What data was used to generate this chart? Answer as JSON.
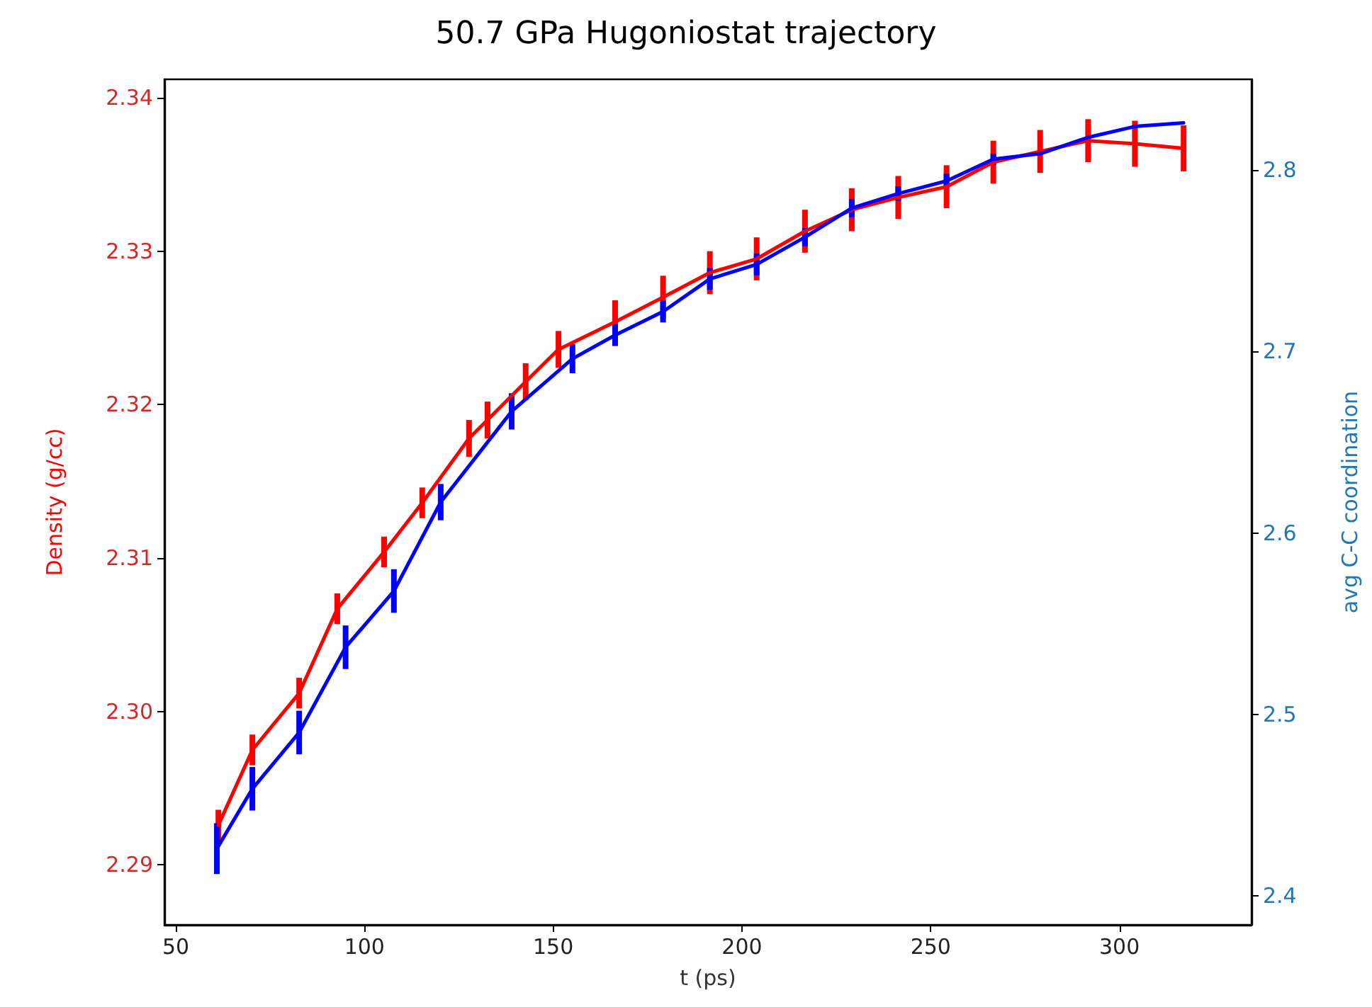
{
  "chart_data": {
    "type": "line",
    "title": "50.7 GPa Hugoniostat trajectory",
    "xlabel": "t (ps)",
    "ylabel": "Density (g/cc)",
    "y2label": "avg C-C coordination",
    "xlim": [
      47,
      335
    ],
    "xticks": [
      50,
      100,
      150,
      200,
      250,
      300
    ],
    "ylim": [
      2.2861,
      2.3412
    ],
    "yticks": [
      2.29,
      {
        "value": 2.3,
        "label": "2.30"
      },
      2.31,
      2.32,
      2.33,
      2.34
    ],
    "y2lim": [
      2.384,
      2.85
    ],
    "y2ticks": [
      2.4,
      2.5,
      2.6,
      2.7,
      2.8
    ],
    "grid": false,
    "legend": false,
    "marker": "none",
    "line_style": "solid",
    "series": [
      {
        "color": "#ff0000",
        "axis": "y",
        "x": [
          61.3,
          70.3,
          82.7,
          92.8,
          105.2,
          115.3,
          127.7,
          132.6,
          142.7,
          151.4,
          166.4,
          179.1,
          191.5,
          203.9,
          216.7,
          229.1,
          241.4,
          254.2,
          266.6,
          279.0,
          291.7,
          304.1,
          317.0
        ],
        "values": [
          2.2926,
          2.2975,
          2.3012,
          2.3067,
          2.3104,
          2.3136,
          2.3178,
          2.319,
          2.3215,
          2.3236,
          2.3254,
          2.327,
          2.3286,
          2.3295,
          2.3313,
          2.3327,
          2.3335,
          2.3342,
          2.3358,
          2.3365,
          2.3372,
          2.337,
          2.3367
        ],
        "errors": [
          0.001,
          0.001,
          0.001,
          0.001,
          0.001,
          0.001,
          0.0012,
          0.0012,
          0.0012,
          0.0012,
          0.0014,
          0.0014,
          0.0014,
          0.0014,
          0.0014,
          0.0014,
          0.0014,
          0.0014,
          0.0014,
          0.0014,
          0.0014,
          0.0015,
          0.0015
        ]
      },
      {
        "color": "#0000ff",
        "axis": "y2",
        "x": [
          60.9,
          70.3,
          82.7,
          95.0,
          107.8,
          120.2,
          139.0,
          155.1,
          166.4,
          179.1,
          191.5,
          203.9,
          216.7,
          229.1,
          241.4,
          254.2,
          266.6,
          279.0,
          291.7,
          304.1,
          317.0
        ],
        "values": [
          2.426,
          2.459,
          2.49,
          2.537,
          2.568,
          2.617,
          2.667,
          2.696,
          2.709,
          2.722,
          2.74,
          2.748,
          2.763,
          2.779,
          2.787,
          2.794,
          2.806,
          2.809,
          2.818,
          2.824,
          2.826
        ],
        "errors": [
          0.014,
          0.012,
          0.012,
          0.012,
          0.012,
          0.01,
          0.01,
          0.008,
          0.006,
          0.006,
          0.006,
          0.006,
          0.005,
          0.005,
          0.004,
          0.004,
          0.003,
          null,
          null,
          null,
          null
        ]
      }
    ]
  }
}
